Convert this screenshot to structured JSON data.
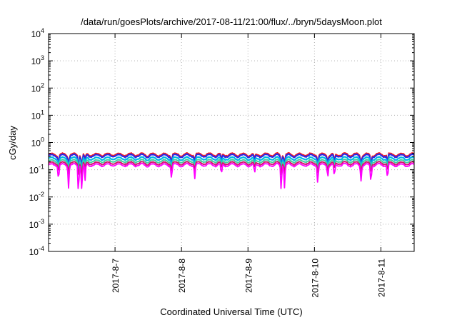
{
  "chart_data": {
    "type": "line",
    "title": "/data/run/goesPlots/archive/2017-08-11/21:00/flux/../bryn/5daysMoon.plot",
    "xlabel": "Coordinated Universal Time (UTC)",
    "ylabel": "cGy/day",
    "yscale": "log",
    "ylim": [
      0.0001,
      10000
    ],
    "xlim": [
      0,
      5.5
    ],
    "grid": true,
    "x_ticks": [
      {
        "x": 1.0,
        "label": "2017-8-7"
      },
      {
        "x": 2.0,
        "label": "2017-8-8"
      },
      {
        "x": 3.0,
        "label": "2017-8-9"
      },
      {
        "x": 4.0,
        "label": "2017-8-10"
      },
      {
        "x": 5.0,
        "label": "2017-8-11"
      }
    ],
    "y_ticks": [
      {
        "value": 0.0001,
        "base": "10",
        "exp": "-4"
      },
      {
        "value": 0.001,
        "base": "10",
        "exp": "-3"
      },
      {
        "value": 0.01,
        "base": "10",
        "exp": "-2"
      },
      {
        "value": 0.1,
        "base": "10",
        "exp": "-1"
      },
      {
        "value": 1,
        "base": "10",
        "exp": "0"
      },
      {
        "value": 10,
        "base": "10",
        "exp": "1"
      },
      {
        "value": 100,
        "base": "10",
        "exp": "2"
      },
      {
        "value": 1000,
        "base": "10",
        "exp": "3"
      },
      {
        "value": 10000,
        "base": "10",
        "exp": "4"
      }
    ],
    "dips": [
      {
        "x": 0.15,
        "depth": 0.55
      },
      {
        "x": 0.3,
        "depth": 0.6
      },
      {
        "x": 0.45,
        "depth": 0.75
      },
      {
        "x": 0.5,
        "depth": 0.9
      },
      {
        "x": 0.55,
        "depth": 0.5
      },
      {
        "x": 1.85,
        "depth": 0.5
      },
      {
        "x": 2.2,
        "depth": 0.45
      },
      {
        "x": 2.6,
        "depth": 0.45
      },
      {
        "x": 3.1,
        "depth": 0.4
      },
      {
        "x": 3.5,
        "depth": 0.7
      },
      {
        "x": 3.55,
        "depth": 0.6
      },
      {
        "x": 4.05,
        "depth": 0.6
      },
      {
        "x": 4.2,
        "depth": 0.45
      },
      {
        "x": 4.3,
        "depth": 0.5
      },
      {
        "x": 4.7,
        "depth": 0.5
      },
      {
        "x": 4.85,
        "depth": 0.6
      },
      {
        "x": 5.1,
        "depth": 0.55
      }
    ],
    "series": [
      {
        "base": 0.36,
        "color": "#ff1a1a",
        "width": 2.2
      },
      {
        "base": 0.33,
        "color": "#2a2ae6",
        "width": 2.2
      },
      {
        "base": 0.26,
        "color": "#00b8e6",
        "width": 2.2
      },
      {
        "base": 0.21,
        "color": "#40d0a0",
        "width": 2.0
      },
      {
        "base": 0.175,
        "color": "#d01870",
        "width": 2.0
      },
      {
        "base": 0.15,
        "color": "#ff00ff",
        "width": 1.8
      }
    ]
  }
}
